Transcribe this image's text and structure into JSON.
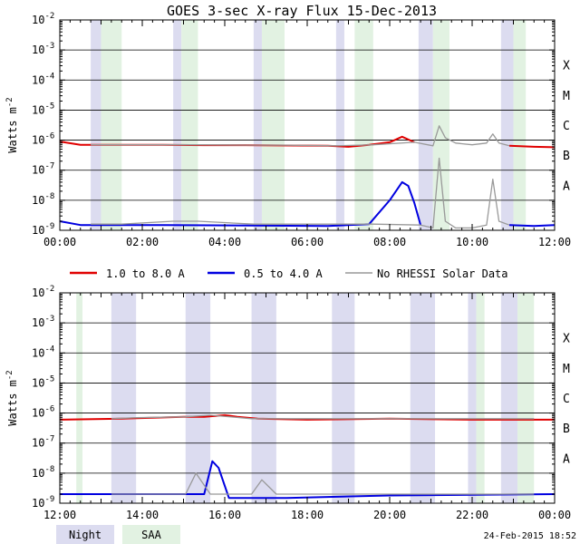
{
  "title": "GOES 3-sec X-ray Flux   15-Dec-2013",
  "ylabel": "Watts m",
  "ylabel_exp": "-2",
  "y_tick_exponents": [
    "-2",
    "-3",
    "-4",
    "-5",
    "-6",
    "-7",
    "-8",
    "-9"
  ],
  "flare_classes": [
    "X",
    "M",
    "C",
    "B",
    "A"
  ],
  "legend": {
    "long": "1.0 to 8.0 A",
    "short": "0.5 to 4.0 A",
    "no_data": "No RHESSI Solar Data"
  },
  "key": {
    "night": "Night",
    "saa": "SAA"
  },
  "timestamp": "24-Feb-2015 18:52",
  "colors": {
    "long": "#e00000",
    "short": "#0000e0",
    "no_data": "#999999",
    "night": "#dcdcf0",
    "saa": "#e2f2e2",
    "grid": "#000000"
  },
  "chart_data": [
    {
      "type": "line",
      "panel": "top",
      "x_unit": "hour",
      "xlim": [
        0,
        12
      ],
      "ylim": [
        1e-09,
        0.01
      ],
      "yscale": "log",
      "x_tick_labels": [
        "00:00",
        "02:00",
        "04:00",
        "06:00",
        "08:00",
        "10:00",
        "12:00"
      ],
      "night_intervals": [
        [
          0.75,
          1.0
        ],
        [
          2.75,
          2.95
        ],
        [
          4.7,
          4.9
        ],
        [
          6.7,
          6.9
        ],
        [
          8.7,
          9.05
        ],
        [
          10.7,
          11.0
        ]
      ],
      "saa_intervals": [
        [
          1.0,
          1.5
        ],
        [
          2.95,
          3.35
        ],
        [
          4.9,
          5.45
        ],
        [
          7.15,
          7.6
        ],
        [
          9.05,
          9.45
        ],
        [
          11.0,
          11.3
        ]
      ],
      "series": [
        {
          "name": "1.0 to 8.0 A",
          "key": "long",
          "x": [
            0,
            0.5,
            1.5,
            2.5,
            3.5,
            4.5,
            6.5,
            7.0,
            7.5,
            8.0,
            8.3,
            8.6
          ],
          "y": [
            9e-07,
            7e-07,
            7e-07,
            7e-07,
            6.8e-07,
            6.8e-07,
            6.5e-07,
            6e-07,
            7e-07,
            8.5e-07,
            1.3e-06,
            8.5e-07
          ]
        },
        {
          "name": "1.0 to 8.0 A (second segment)",
          "key": "long",
          "x": [
            10.9,
            11.5,
            12.0
          ],
          "y": [
            6.5e-07,
            6e-07,
            5.8e-07
          ]
        },
        {
          "name": "No RHESSI Solar Data (long)",
          "key": "no_data",
          "x": [
            0.75,
            1.5,
            2.75,
            3.35,
            4.7,
            5.45,
            6.7,
            7.6,
            8.6,
            9.05,
            9.2,
            9.35,
            9.6,
            10.0,
            10.35,
            10.5,
            10.65,
            10.9
          ],
          "y": [
            7e-07,
            7e-07,
            7e-07,
            7e-07,
            6.8e-07,
            6.8e-07,
            6.5e-07,
            7e-07,
            8.5e-07,
            6.5e-07,
            3e-06,
            1.2e-06,
            8e-07,
            7e-07,
            8e-07,
            1.6e-06,
            8e-07,
            6.5e-07
          ]
        },
        {
          "name": "0.5 to 4.0 A",
          "key": "short",
          "x": [
            0,
            0.5,
            2.5,
            6.5,
            7.5,
            8.0,
            8.3,
            8.45,
            8.6,
            8.75
          ],
          "y": [
            2e-09,
            1.5e-09,
            1.5e-09,
            1.4e-09,
            1.6e-09,
            1e-08,
            4e-08,
            3e-08,
            8e-09,
            1.5e-09
          ]
        },
        {
          "name": "0.5 to 4.0 A (second segment)",
          "key": "short",
          "x": [
            10.9,
            11.5,
            12.0
          ],
          "y": [
            1.5e-09,
            1.4e-09,
            1.5e-09
          ]
        },
        {
          "name": "No RHESSI Solar Data (short)",
          "key": "no_data",
          "x": [
            0.75,
            1.5,
            2.75,
            3.35,
            4.7,
            5.45,
            6.7,
            7.6,
            8.75,
            9.05,
            9.2,
            9.35,
            9.6,
            10.0,
            10.35,
            10.5,
            10.65,
            10.9
          ],
          "y": [
            1.6e-09,
            1.6e-09,
            2e-09,
            2e-09,
            1.6e-09,
            1.6e-09,
            1.6e-09,
            1.6e-09,
            1.5e-09,
            1.2e-09,
            2.5e-07,
            2e-09,
            1.2e-09,
            1.2e-09,
            1.5e-09,
            5e-08,
            2e-09,
            1.5e-09
          ]
        }
      ]
    },
    {
      "type": "line",
      "panel": "bottom",
      "x_unit": "hour",
      "xlim": [
        12,
        24
      ],
      "ylim": [
        1e-09,
        0.01
      ],
      "yscale": "log",
      "x_tick_labels": [
        "12:00",
        "14:00",
        "16:00",
        "18:00",
        "20:00",
        "22:00",
        "00:00"
      ],
      "night_intervals": [
        [
          13.25,
          13.85
        ],
        [
          15.05,
          15.65
        ],
        [
          16.65,
          17.25
        ],
        [
          18.6,
          19.15
        ],
        [
          20.5,
          21.1
        ],
        [
          21.9,
          22.1
        ],
        [
          22.7,
          23.1
        ]
      ],
      "saa_intervals": [
        [
          12.4,
          12.55
        ],
        [
          22.1,
          22.3
        ],
        [
          23.1,
          23.5
        ]
      ],
      "series": [
        {
          "name": "1.0 to 8.0 A",
          "key": "long",
          "x": [
            12.0,
            13.5,
            15.0,
            15.5,
            16.0,
            16.3,
            16.8,
            18.0,
            20.0,
            22.0,
            23.5,
            24.0
          ],
          "y": [
            6e-07,
            6.5e-07,
            7.5e-07,
            7.5e-07,
            8.5e-07,
            7.5e-07,
            6.5e-07,
            6e-07,
            6.5e-07,
            6e-07,
            6e-07,
            6e-07
          ]
        },
        {
          "name": "No RHESSI Solar Data (long)",
          "key": "no_data",
          "x": [
            13.25,
            13.85,
            15.05,
            15.65,
            16.65,
            17.25,
            22.9,
            23.5
          ],
          "y": [
            6.5e-07,
            7e-07,
            7.5e-07,
            8.5e-07,
            6.5e-07,
            6.5e-07,
            6.5e-07,
            6.5e-07
          ]
        },
        {
          "name": "0.5 to 4.0 A",
          "key": "short",
          "x": [
            12.0,
            13.5,
            15.5,
            15.7,
            15.85,
            16.1,
            16.3,
            17.5,
            20.0,
            24.0
          ],
          "y": [
            2e-09,
            2e-09,
            2e-09,
            2.5e-08,
            1.5e-08,
            1.5e-09,
            1.5e-09,
            1.5e-09,
            1.8e-09,
            2e-09
          ]
        },
        {
          "name": "No RHESSI Solar Data (short)",
          "key": "no_data",
          "x": [
            13.25,
            13.85,
            15.05,
            15.3,
            15.65,
            16.65,
            16.9,
            17.25,
            22.9,
            23.5
          ],
          "y": [
            2e-09,
            2e-09,
            2e-09,
            1e-08,
            2e-09,
            2e-09,
            6e-09,
            2e-09,
            2e-09,
            2e-09
          ]
        }
      ]
    }
  ]
}
